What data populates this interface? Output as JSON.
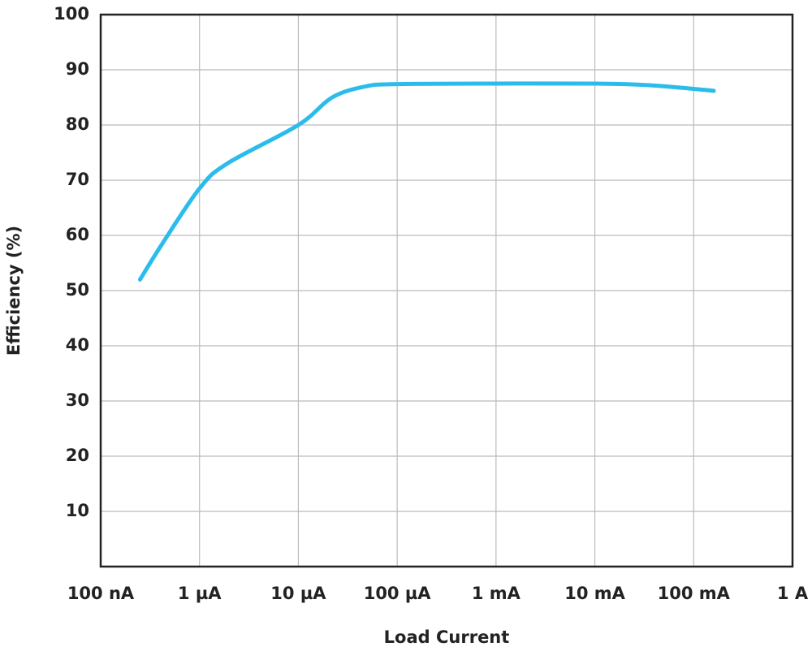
{
  "chart_data": {
    "type": "line",
    "x_label": "Load Current",
    "y_label": "Efficiency (%)",
    "x_scale": "log",
    "grid": true,
    "xlim": [
      1e-07,
      1
    ],
    "xticks": [
      {
        "value": 1e-07,
        "label": "100 nA"
      },
      {
        "value": 1e-06,
        "label": "1 µA"
      },
      {
        "value": 1e-05,
        "label": "10 µA"
      },
      {
        "value": 0.0001,
        "label": "100 µA"
      },
      {
        "value": 0.001,
        "label": "1 mA"
      },
      {
        "value": 0.01,
        "label": "10 mA"
      },
      {
        "value": 0.1,
        "label": "100 mA"
      },
      {
        "value": 1,
        "label": "1 A"
      }
    ],
    "ylim": [
      0,
      100
    ],
    "yticks": [
      10,
      20,
      30,
      40,
      50,
      60,
      70,
      80,
      90,
      100
    ],
    "series": [
      {
        "color": "#2bbcec",
        "x": [
          2.5e-07,
          4.2e-07,
          1e-06,
          1.9e-06,
          1e-05,
          2.2e-05,
          4.8e-05,
          0.0001,
          0.001,
          0.01,
          0.036,
          0.16
        ],
        "values": [
          52,
          58.5,
          68.5,
          73,
          80,
          85,
          87,
          87.4,
          87.5,
          87.5,
          87.2,
          86.2
        ]
      }
    ]
  }
}
